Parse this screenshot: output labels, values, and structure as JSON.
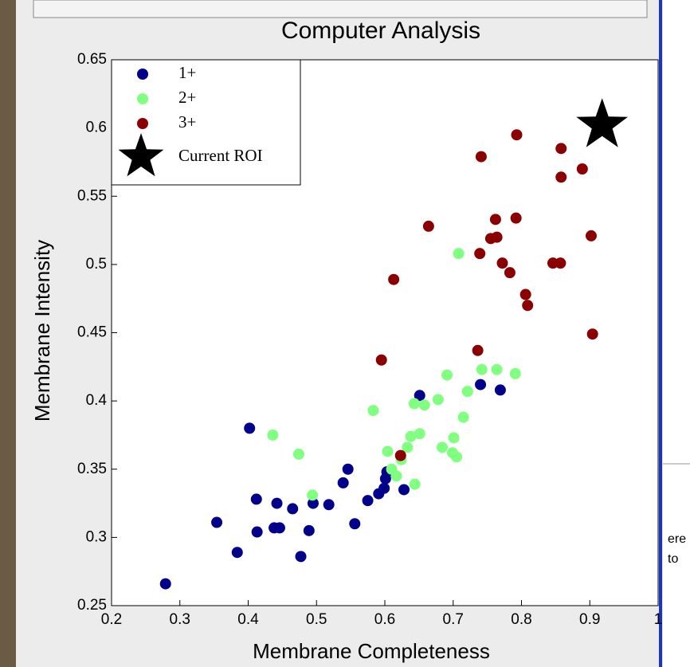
{
  "chart_data": {
    "type": "scatter",
    "title": "Computer Analysis",
    "x_label": "Membrane Completeness",
    "y_label": "Membrane Intensity",
    "xlim": [
      0.2,
      1
    ],
    "ylim": [
      0.25,
      0.65
    ],
    "xticks": [
      0.2,
      0.3,
      0.4,
      0.5,
      0.6,
      0.7,
      0.8,
      0.9,
      1
    ],
    "yticks": [
      0.25,
      0.3,
      0.35,
      0.4,
      0.45,
      0.5,
      0.55,
      0.6,
      0.65
    ],
    "legend": "upper left",
    "series": [
      {
        "name": "1+",
        "color": "#00008b",
        "marker": "circle",
        "x": [
          0.279,
          0.354,
          0.384,
          0.402,
          0.412,
          0.413,
          0.438,
          0.442,
          0.446,
          0.465,
          0.477,
          0.489,
          0.495,
          0.518,
          0.539,
          0.546,
          0.556,
          0.575,
          0.591,
          0.599,
          0.603,
          0.628,
          0.651,
          0.74,
          0.769,
          0.601
        ],
        "y": [
          0.266,
          0.311,
          0.289,
          0.38,
          0.328,
          0.304,
          0.307,
          0.325,
          0.307,
          0.321,
          0.286,
          0.305,
          0.325,
          0.324,
          0.34,
          0.35,
          0.31,
          0.327,
          0.332,
          0.336,
          0.348,
          0.335,
          0.404,
          0.412,
          0.408,
          0.343
        ]
      },
      {
        "name": "2+",
        "color": "#80ff80",
        "marker": "circle",
        "x": [
          0.436,
          0.474,
          0.494,
          0.583,
          0.604,
          0.61,
          0.617,
          0.624,
          0.633,
          0.638,
          0.643,
          0.651,
          0.658,
          0.644,
          0.678,
          0.684,
          0.691,
          0.699,
          0.701,
          0.705,
          0.715,
          0.721,
          0.708,
          0.742,
          0.764,
          0.791
        ],
        "y": [
          0.375,
          0.361,
          0.331,
          0.393,
          0.363,
          0.35,
          0.345,
          0.357,
          0.366,
          0.374,
          0.398,
          0.376,
          0.397,
          0.339,
          0.401,
          0.366,
          0.419,
          0.362,
          0.373,
          0.359,
          0.388,
          0.407,
          0.508,
          0.423,
          0.423,
          0.42
        ]
      },
      {
        "name": "3+",
        "color": "#8b0000",
        "marker": "circle",
        "x": [
          0.595,
          0.613,
          0.623,
          0.664,
          0.736,
          0.739,
          0.741,
          0.755,
          0.762,
          0.764,
          0.772,
          0.783,
          0.792,
          0.793,
          0.806,
          0.809,
          0.846,
          0.857,
          0.858,
          0.858,
          0.889,
          0.902,
          0.904
        ],
        "y": [
          0.43,
          0.489,
          0.36,
          0.528,
          0.437,
          0.508,
          0.579,
          0.519,
          0.533,
          0.52,
          0.501,
          0.494,
          0.534,
          0.595,
          0.478,
          0.47,
          0.501,
          0.501,
          0.585,
          0.564,
          0.57,
          0.521,
          0.449
        ]
      },
      {
        "name": "Current ROI",
        "color": "#000000",
        "marker": "star",
        "x": [
          0.918
        ],
        "y": [
          0.602
        ]
      }
    ]
  },
  "side_text": [
    "ere",
    "to"
  ]
}
